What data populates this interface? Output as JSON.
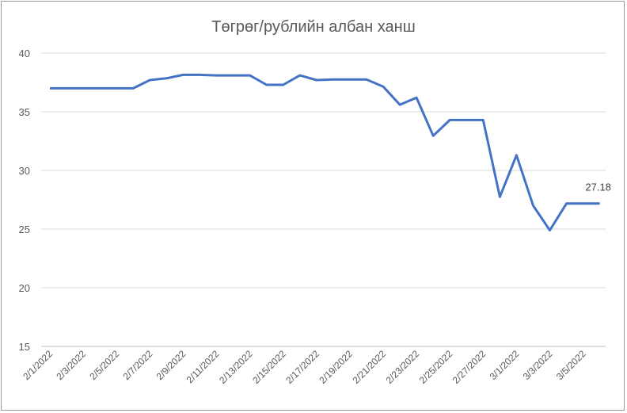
{
  "chart_data": {
    "type": "line",
    "title": "Төгрөг/рублийн албан ханш",
    "xlabel": "",
    "ylabel": "",
    "ylim": [
      15,
      40
    ],
    "yticks": [
      15,
      20,
      25,
      30,
      35,
      40
    ],
    "grid": true,
    "x": [
      "2/1/2022",
      "2/2/2022",
      "2/3/2022",
      "2/4/2022",
      "2/5/2022",
      "2/6/2022",
      "2/7/2022",
      "2/8/2022",
      "2/9/2022",
      "2/10/2022",
      "2/11/2022",
      "2/12/2022",
      "2/13/2022",
      "2/14/2022",
      "2/15/2022",
      "2/16/2022",
      "2/17/2022",
      "2/18/2022",
      "2/19/2022",
      "2/20/2022",
      "2/21/2022",
      "2/22/2022",
      "2/23/2022",
      "2/24/2022",
      "2/25/2022",
      "2/26/2022",
      "2/27/2022",
      "2/28/2022",
      "3/1/2022",
      "3/2/2022",
      "3/3/2022",
      "3/4/2022",
      "3/5/2022",
      "3/6/2022"
    ],
    "xtick_labels": [
      "2/1/2022",
      "2/3/2022",
      "2/5/2022",
      "2/7/2022",
      "2/9/2022",
      "2/11/2022",
      "2/13/2022",
      "2/15/2022",
      "2/17/2022",
      "2/19/2022",
      "2/21/2022",
      "2/23/2022",
      "2/25/2022",
      "2/27/2022",
      "3/1/2022",
      "3/3/2022",
      "3/5/2022"
    ],
    "series": [
      {
        "color": "#4472c4",
        "values": [
          37.0,
          37.0,
          37.0,
          37.0,
          37.0,
          37.0,
          37.7,
          37.85,
          38.15,
          38.15,
          38.1,
          38.1,
          38.1,
          37.3,
          37.3,
          38.1,
          37.7,
          37.75,
          37.75,
          37.75,
          37.15,
          35.6,
          36.2,
          32.95,
          34.3,
          34.3,
          34.3,
          27.75,
          31.3,
          27.0,
          24.9,
          27.18,
          27.18,
          27.18
        ]
      }
    ],
    "data_label": "27.18"
  }
}
